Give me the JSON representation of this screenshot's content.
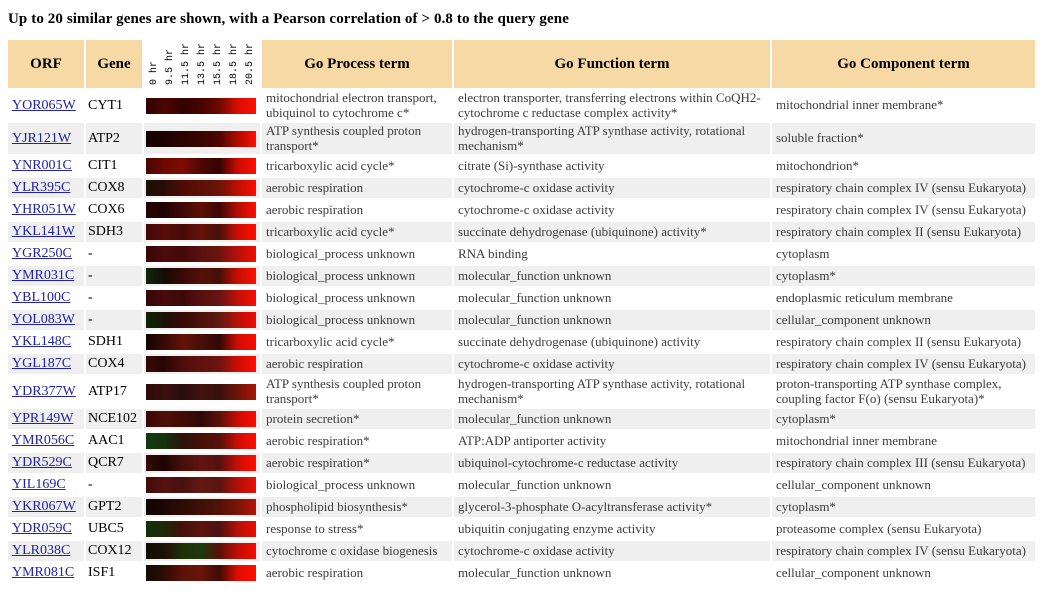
{
  "title": "Up to 20 similar genes are shown, with a Pearson correlation of > 0.8 to the query gene",
  "colors": {
    "header_bg": "#F7D9A5",
    "row_alt_bg": "#EFEFEF",
    "link_blue": "#2222AA",
    "heat_bright_red": "#FF0D00",
    "heat_green": "#123C10"
  },
  "table": {
    "headers": {
      "orf": "ORF",
      "gene": "Gene",
      "process": "Go Process term",
      "function": "Go Function term",
      "component": "Go Component term"
    },
    "time_labels": [
      "0 hr",
      "9.5 hr",
      "11.5 hr",
      "13.5 hr",
      "15.5 hr",
      "18.5 hr",
      "20.5 hr"
    ],
    "rows": [
      {
        "orf": "YOR065W",
        "gene": "CYT1",
        "process": "mitochondrial electron transport, ubiquinol to cytochrome c*",
        "function": "electron transporter, transferring electrons within CoQH2-cytochrome c reductase complex activity*",
        "component": "mitochondrial inner membrane*",
        "heatmap": [
          "#2e0200",
          "#4e0500",
          "#330300",
          "#460400",
          "#6e0800",
          "#d90d00",
          "#ff0e00"
        ]
      },
      {
        "orf": "YJR121W",
        "gene": "ATP2",
        "process": "ATP synthesis coupled proton transport*",
        "function": "hydrogen-transporting ATP synthase activity, rotational mechanism*",
        "component": "soluble fraction*",
        "heatmap": [
          "#120100",
          "#1e0200",
          "#2a0300",
          "#380400",
          "#4c0600",
          "#b00a00",
          "#ff0e00"
        ]
      },
      {
        "orf": "YNR001C",
        "gene": "CIT1",
        "process": "tricarboxylic acid cycle*",
        "function": "citrate (Si)-synthase activity",
        "component": "mitochondrion*",
        "heatmap": [
          "#480600",
          "#6e0a00",
          "#7c0c04",
          "#500700",
          "#340300",
          "#cc0c00",
          "#ff0d00"
        ]
      },
      {
        "orf": "YLR395C",
        "gene": "COX8",
        "process": "aerobic respiration",
        "function": "cytochrome-c oxidase activity",
        "component": "respiratory chain complex IV (sensu Eukaryota)",
        "heatmap": [
          "#1a1002",
          "#2a0d05",
          "#4c0c04",
          "#5e1006",
          "#6a1408",
          "#c00e02",
          "#fb0c00"
        ]
      },
      {
        "orf": "YHR051W",
        "gene": "COX6",
        "process": "aerobic respiration",
        "function": "cytochrome-c oxidase activity",
        "component": "respiratory chain complex IV (sensu Eukaryota)",
        "heatmap": [
          "#260404",
          "#1e0303",
          "#420805",
          "#5c1008",
          "#3e0705",
          "#b50d03",
          "#ff0e00"
        ]
      },
      {
        "orf": "YKL141W",
        "gene": "SDH3",
        "process": "tricarboxylic acid cycle*",
        "function": "succinate dehydrogenase (ubiquinone) activity*",
        "component": "respiratory chain complex II (sensu Eukaryota)",
        "heatmap": [
          "#400808",
          "#560c08",
          "#4a0a06",
          "#661208",
          "#481008",
          "#d00e04",
          "#ff0d00"
        ]
      },
      {
        "orf": "YGR250C",
        "gene": "-",
        "process": "biological_process unknown",
        "function": "RNA binding",
        "component": "cytoplasm",
        "heatmap": [
          "#380606",
          "#4c0c0a",
          "#420a08",
          "#5a1210",
          "#6c1410",
          "#b81008",
          "#f20d04"
        ]
      },
      {
        "orf": "YMR031C",
        "gene": "-",
        "process": "biological_process unknown",
        "function": "molecular_function unknown",
        "component": "cytoplasm*",
        "heatmap": [
          "#0e2a08",
          "#140c04",
          "#3c0806",
          "#541008",
          "#461008",
          "#c80e04",
          "#ff0d00"
        ]
      },
      {
        "orf": "YBL100C",
        "gene": "-",
        "process": "biological_process unknown",
        "function": "molecular_function unknown",
        "component": "endoplasmic reticulum membrane",
        "heatmap": [
          "#330707",
          "#460b0a",
          "#3c0908",
          "#561110",
          "#661412",
          "#c21008",
          "#fa0c02"
        ]
      },
      {
        "orf": "YOL083W",
        "gene": "-",
        "process": "biological_process unknown",
        "function": "molecular_function unknown",
        "component": "cellular_component unknown",
        "heatmap": [
          "#0c2405",
          "#1c1206",
          "#380a06",
          "#4c1008",
          "#5e1a10",
          "#b81008",
          "#f00b02"
        ]
      },
      {
        "orf": "YKL148C",
        "gene": "SDH1",
        "process": "tricarboxylic acid cycle*",
        "function": "succinate dehydrogenase (ubiquinone) activity",
        "component": "respiratory chain complex II (sensu Eukaryota)",
        "heatmap": [
          "#120402",
          "#380a04",
          "#641208",
          "#481008",
          "#300804",
          "#d00c02",
          "#fb0c00"
        ]
      },
      {
        "orf": "YGL187C",
        "gene": "COX4",
        "process": "aerobic respiration",
        "function": "cytochrome-c oxidase activity",
        "component": "respiratory chain complex IV (sensu Eukaryota)",
        "heatmap": [
          "#360808",
          "#2c0606",
          "#4c0e0c",
          "#601210",
          "#6e1410",
          "#cc0e06",
          "#ff0d00"
        ]
      },
      {
        "orf": "YDR377W",
        "gene": "ATP17",
        "process": "ATP synthesis coupled proton transport*",
        "function": "hydrogen-transporting ATP synthase activity, rotational mechanism*",
        "component": "proton-transporting ATP synthase complex, coupling factor F(o) (sensu Eukaryota)*",
        "heatmap": [
          "#2c0a08",
          "#3c1010",
          "#280c0c",
          "#441210",
          "#38100c",
          "#701408",
          "#a81408"
        ]
      },
      {
        "orf": "YPR149W",
        "gene": "NCE102",
        "process": "protein secretion*",
        "function": "molecular_function unknown",
        "component": "cytoplasm*",
        "heatmap": [
          "#3a0a06",
          "#4e0e08",
          "#440c06",
          "#2e0806",
          "#5a1008",
          "#cc0c04",
          "#fa0c00"
        ]
      },
      {
        "orf": "YMR056C",
        "gene": "AAC1",
        "process": "aerobic respiration*",
        "function": "ATP:ADP antiporter activity",
        "component": "mitochondrial inner membrane",
        "heatmap": [
          "#123c10",
          "#16330c",
          "#2c1208",
          "#461008",
          "#54120a",
          "#cc0e04",
          "#ff0d00"
        ]
      },
      {
        "orf": "YDR529C",
        "gene": "QCR7",
        "process": "aerobic respiration*",
        "function": "ubiquinol-cytochrome-c reductase activity",
        "component": "respiratory chain complex III (sensu Eukaryota)",
        "heatmap": [
          "#320808",
          "#1e0404",
          "#461008",
          "#621410",
          "#541210",
          "#c80e06",
          "#ff0e00"
        ]
      },
      {
        "orf": "YIL169C",
        "gene": "-",
        "process": "biological_process unknown",
        "function": "molecular_function unknown",
        "component": "cellular_component unknown",
        "heatmap": [
          "#400a06",
          "#581210",
          "#481010",
          "#661812",
          "#5a1410",
          "#b01008",
          "#e81008"
        ]
      },
      {
        "orf": "YKR067W",
        "gene": "GPT2",
        "process": "phospholipid biosynthesis*",
        "function": "glycerol-3-phosphate O-acyltransferase activity*",
        "component": "cytoplasm*",
        "heatmap": [
          "#100402",
          "#1c0804",
          "#2e0c06",
          "#3e1008",
          "#501208",
          "#7c1408",
          "#b51408"
        ]
      },
      {
        "orf": "YDR059C",
        "gene": "UBC5",
        "process": "response to stress*",
        "function": "ubiquitin conjugating enzyme activity",
        "component": "proteasome complex (sensu Eukaryota)",
        "heatmap": [
          "#123008",
          "#1e2808",
          "#461008",
          "#5c1410",
          "#4c1210",
          "#b81008",
          "#ea0e04"
        ]
      },
      {
        "orf": "YLR038C",
        "gene": "COX12",
        "process": "cytochrome c oxidase biogenesis",
        "function": "cytochrome-c oxidase activity",
        "component": "respiratory chain complex IV (sensu Eukaryota)",
        "heatmap": [
          "#100c04",
          "#1c1206",
          "#203008",
          "#1c3a0e",
          "#581208",
          "#c00e04",
          "#f60b00"
        ]
      },
      {
        "orf": "YMR081C",
        "gene": "ISF1",
        "process": "aerobic respiration",
        "function": "molecular_function unknown",
        "component": "cellular_component unknown",
        "heatmap": [
          "#140a04",
          "#2e0c06",
          "#5c1208",
          "#6a140a",
          "#3c0c06",
          "#e00d02",
          "#ff0e00"
        ]
      }
    ]
  }
}
